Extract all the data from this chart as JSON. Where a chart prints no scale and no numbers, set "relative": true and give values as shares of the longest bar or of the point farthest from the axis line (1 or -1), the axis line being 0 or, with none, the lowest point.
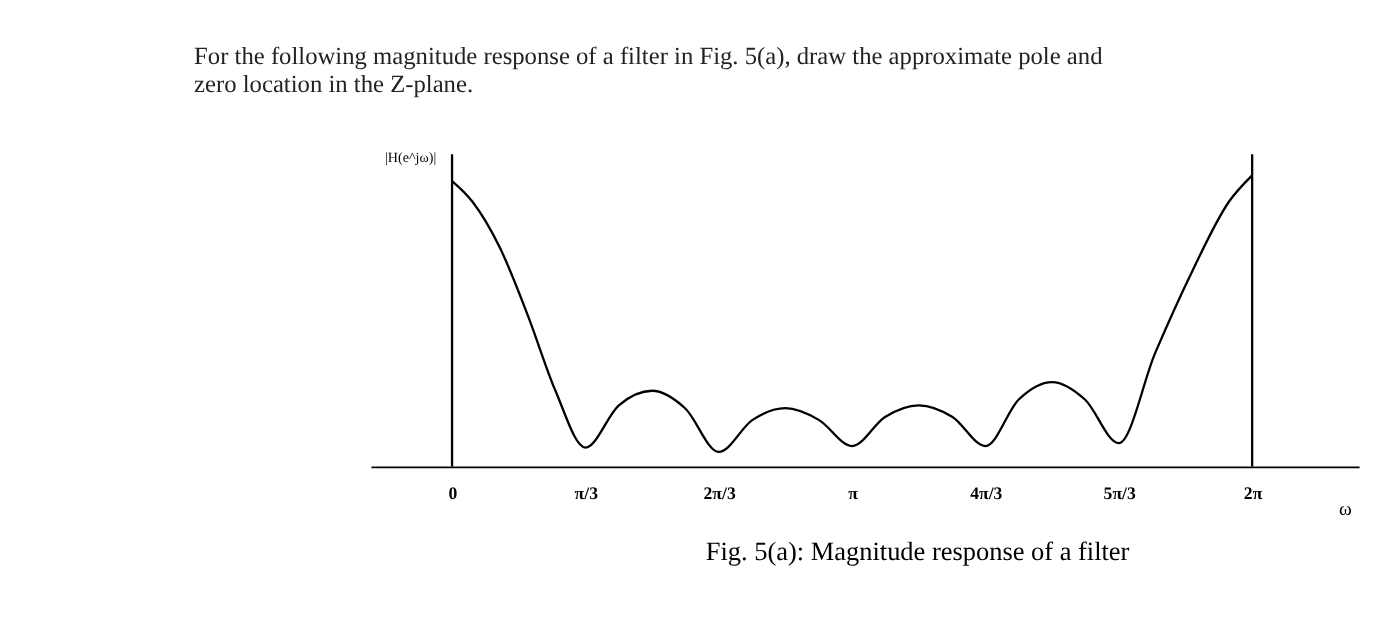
{
  "chart_data": {
    "type": "line",
    "title": [
      "For the following magnitude response of a filter in Fig. 5(a), draw the approximate pole and",
      "zero location in the Z-plane."
    ],
    "xlabel": "ω",
    "ylabel": "|H(e^jω)|",
    "relative": true,
    "grid": false,
    "marker": "none",
    "line_style": "solid",
    "xlim": [
      -0.64,
      7.12
    ],
    "xticks": [
      0,
      {
        "value": 1.0472,
        "label": "π/3"
      },
      {
        "value": 2.0944,
        "label": "2π/3"
      },
      {
        "value": 3.1416,
        "label": "π"
      },
      {
        "value": 4.1888,
        "label": "4π/3"
      },
      {
        "value": 5.236,
        "label": "5π/3"
      },
      {
        "value": 6.2832,
        "label": "2π"
      }
    ],
    "series": [
      {
        "color": "#000000",
        "x": [
          0,
          0.159,
          0.377,
          0.594,
          0.812,
          1.0472,
          1.31,
          1.5708,
          1.83,
          2.0944,
          2.36,
          2.618,
          2.88,
          3.1416,
          3.4,
          3.665,
          3.93,
          4.1888,
          4.45,
          4.712,
          4.97,
          5.236,
          5.522,
          5.812,
          6.102,
          6.2832
        ],
        "values": [
          0.98,
          0.91,
          0.75,
          0.52,
          0.26,
          0.065,
          0.21,
          0.26,
          0.2,
          0.05,
          0.16,
          0.2,
          0.16,
          0.07,
          0.17,
          0.21,
          0.17,
          0.07,
          0.23,
          0.29,
          0.23,
          0.08,
          0.39,
          0.67,
          0.91,
          1.0
        ]
      }
    ],
    "ref_lines": [
      {
        "axis": "x",
        "value": 0,
        "label": null,
        "color": "#000000"
      },
      {
        "axis": "x",
        "value": 6.2832,
        "label": null,
        "color": "#000000"
      }
    ],
    "annotations": [
      "Fig. 5(a): Magnitude response of a filter"
    ]
  }
}
